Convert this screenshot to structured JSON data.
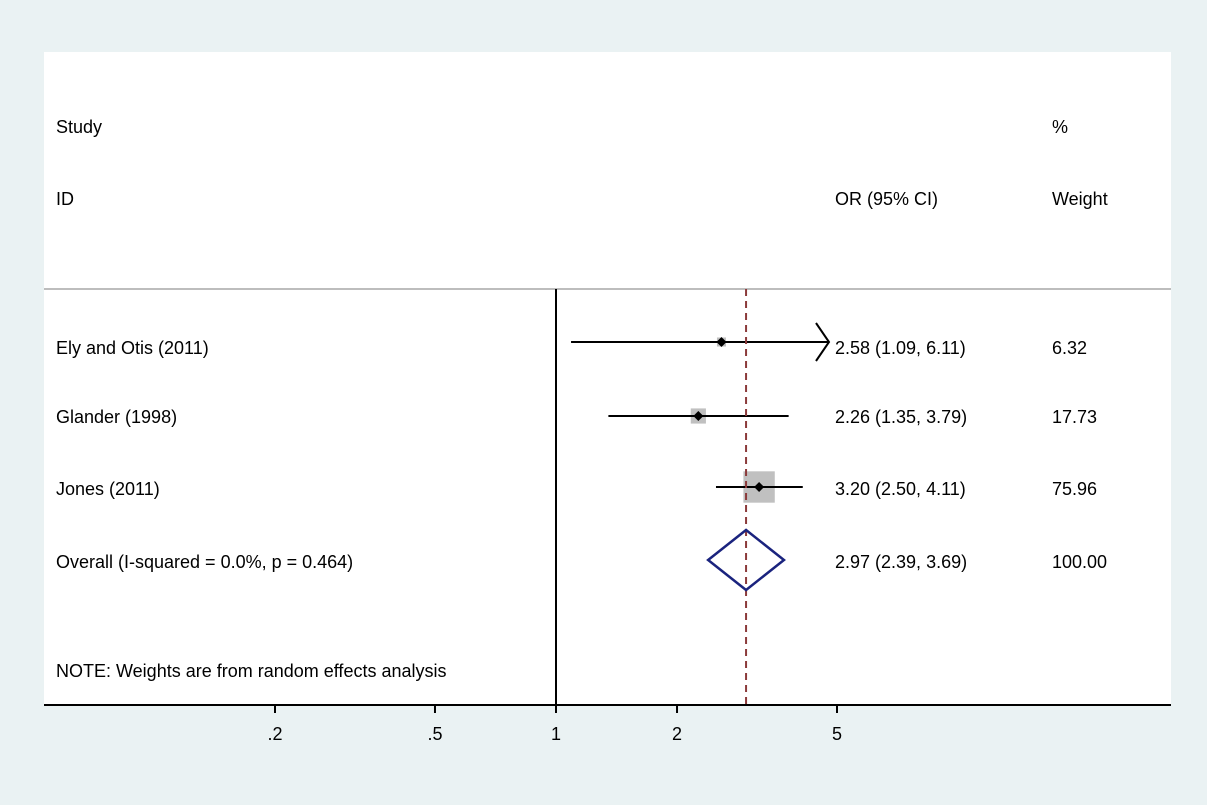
{
  "headers": {
    "study": "Study",
    "id": "ID",
    "or_ci": "OR (95% CI)",
    "pct": "%",
    "weight": "Weight"
  },
  "rows": [
    {
      "label": "Ely and Otis (2011)",
      "or_text": "2.58 (1.09, 6.11)",
      "weight_text": "6.32"
    },
    {
      "label": "Glander (1998)",
      "or_text": "2.26 (1.35, 3.79)",
      "weight_text": "17.73"
    },
    {
      "label": "Jones (2011)",
      "or_text": "3.20 (2.50, 4.11)",
      "weight_text": "75.96"
    }
  ],
  "overall": {
    "label": "Overall  (I-squared = 0.0%, p = 0.464)",
    "or_text": "2.97 (2.39, 3.69)",
    "weight_text": "100.00"
  },
  "note": "NOTE: Weights are from random effects analysis",
  "colors": {
    "background": "#eaf2f3",
    "panel": "#ffffff",
    "weight_box": "#c0c0c0",
    "diamond": "#1a237e",
    "overall_line": "#8b3a3a",
    "separator": "#bdbdbd"
  },
  "chart_data": {
    "type": "forest",
    "scale": "log",
    "null_value": 1,
    "xlim": [
      0.164,
      5.0
    ],
    "xticks": [
      {
        "value": 0.2,
        "label": ".2"
      },
      {
        "value": 0.5,
        "label": ".5"
      },
      {
        "value": 1,
        "label": "1"
      },
      {
        "value": 2,
        "label": "2"
      },
      {
        "value": 5,
        "label": "5"
      }
    ],
    "studies": [
      {
        "name": "Ely and Otis (2011)",
        "or": 2.58,
        "lower": 1.09,
        "upper": 6.11,
        "weight": 6.32
      },
      {
        "name": "Glander (1998)",
        "or": 2.26,
        "lower": 1.35,
        "upper": 3.79,
        "weight": 17.73
      },
      {
        "name": "Jones (2011)",
        "or": 3.2,
        "lower": 2.5,
        "upper": 4.11,
        "weight": 75.96
      }
    ],
    "overall": {
      "or": 2.97,
      "lower": 2.39,
      "upper": 3.69,
      "weight": 100.0,
      "i_squared": 0.0,
      "p": 0.464
    }
  }
}
